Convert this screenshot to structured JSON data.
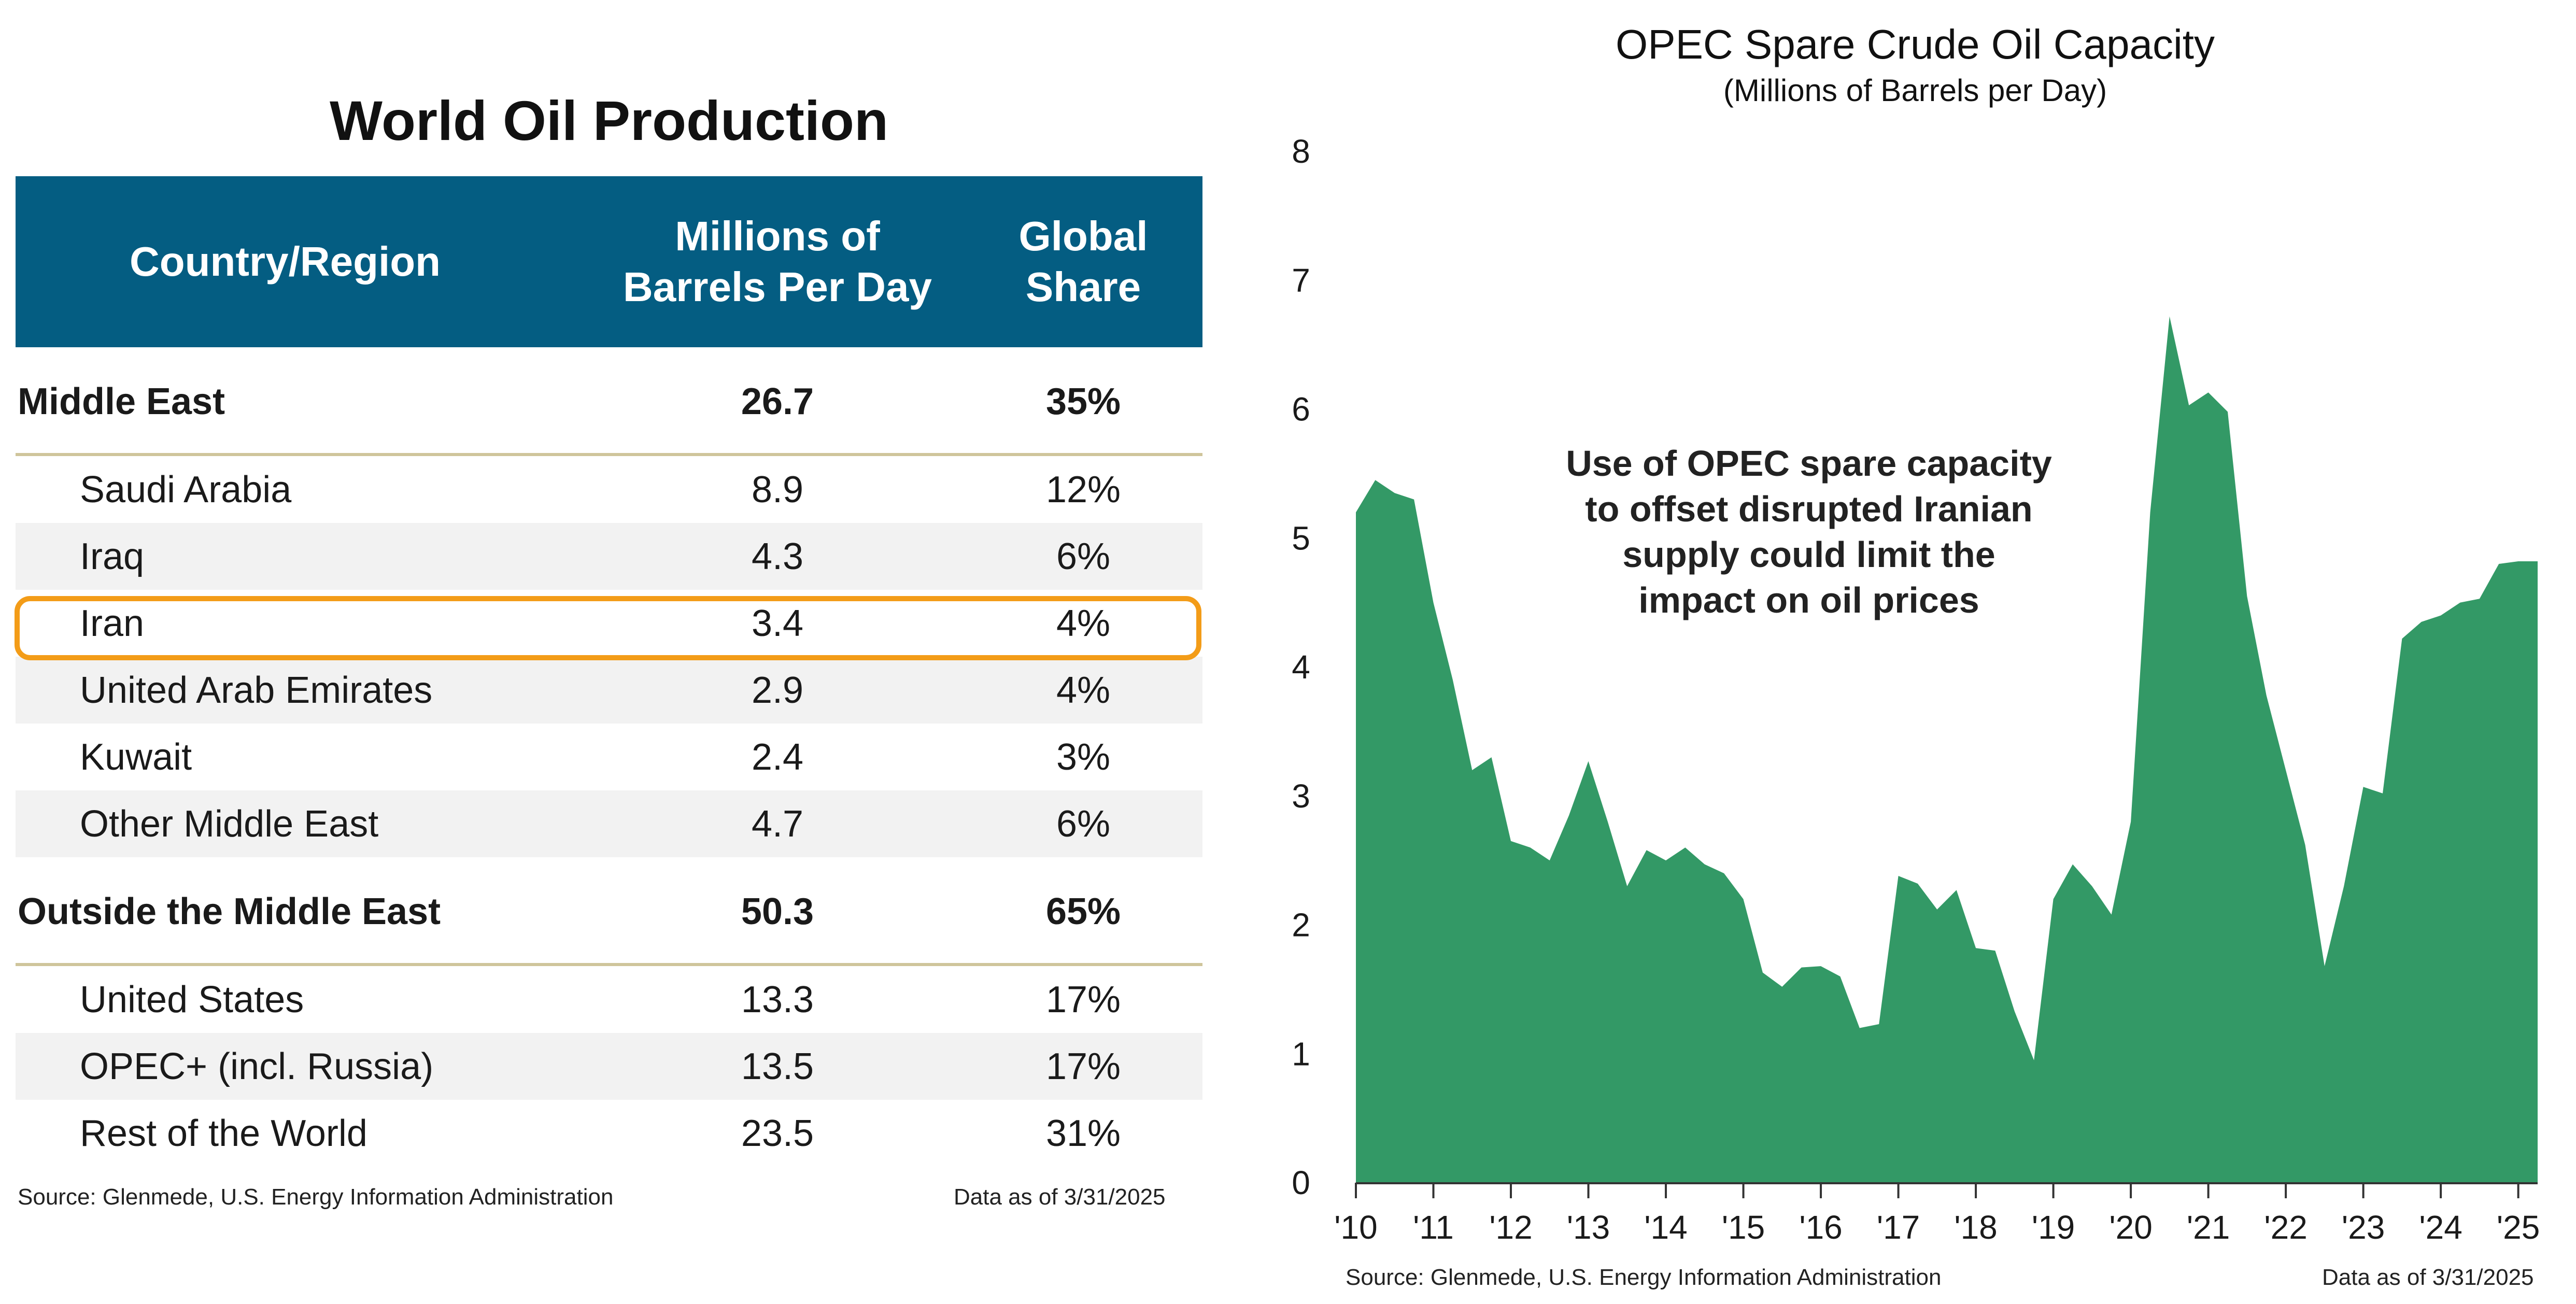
{
  "table": {
    "title": "World Oil Production",
    "headers": {
      "country": "Country/Region",
      "mbpd": "Millions of\nBarrels Per Day",
      "share": "Global\nShare"
    },
    "rows": [
      {
        "name": "Middle East",
        "value": "26.7",
        "share": "35%",
        "kind": "group",
        "shaded": false
      },
      {
        "name": "Saudi Arabia",
        "value": "8.9",
        "share": "12%",
        "kind": "sub",
        "shaded": false
      },
      {
        "name": "Iraq",
        "value": "4.3",
        "share": "6%",
        "kind": "sub",
        "shaded": true
      },
      {
        "name": "Iran",
        "value": "3.4",
        "share": "4%",
        "kind": "sub",
        "shaded": false,
        "highlighted": true
      },
      {
        "name": "United Arab Emirates",
        "value": "2.9",
        "share": "4%",
        "kind": "sub",
        "shaded": true
      },
      {
        "name": "Kuwait",
        "value": "2.4",
        "share": "3%",
        "kind": "sub",
        "shaded": false
      },
      {
        "name": "Other Middle East",
        "value": "4.7",
        "share": "6%",
        "kind": "sub",
        "shaded": true
      },
      {
        "name": "Outside the Middle East",
        "value": "50.3",
        "share": "65%",
        "kind": "group",
        "shaded": false
      },
      {
        "name": "United States",
        "value": "13.3",
        "share": "17%",
        "kind": "sub",
        "shaded": false
      },
      {
        "name": "OPEC+ (incl. Russia)",
        "value": "13.5",
        "share": "17%",
        "kind": "sub",
        "shaded": true
      },
      {
        "name": "Rest of the World",
        "value": "23.5",
        "share": "31%",
        "kind": "sub",
        "shaded": false
      }
    ],
    "source": "Source: Glenmede, U.S. Energy Information Administration",
    "as_of": "Data as of  3/31/2025"
  },
  "colors": {
    "header_bg": "#045d82",
    "rule": "#cfc59b",
    "highlight": "#f39c18",
    "area": "#339966",
    "shade": "#f2f2f2"
  },
  "chart_data": {
    "type": "area",
    "title": "OPEC Spare Crude Oil Capacity",
    "subtitle": "(Millions of Barrels per Day)",
    "xlabel": "",
    "ylabel": "",
    "ylim": [
      0,
      8
    ],
    "yticks": [
      0,
      1,
      2,
      3,
      4,
      5,
      6,
      7,
      8
    ],
    "xlim": [
      2010.0,
      2025.25
    ],
    "xtick_labels": [
      "'10",
      "'11",
      "'12",
      "'13",
      "'14",
      "'15",
      "'16",
      "'17",
      "'18",
      "'19",
      "'20",
      "'21",
      "'22",
      "'23",
      "'24",
      "'25"
    ],
    "grid": false,
    "legend": "none",
    "annotation": "Use of OPEC spare capacity\nto offset disrupted Iranian\nsupply could limit the\nimpact on oil prices",
    "source": "Source: Glenmede, U.S. Energy Information Administration",
    "as_of": "Data as of 3/31/2025",
    "series": [
      {
        "x": [
          2010.0,
          2010.25,
          2010.5,
          2010.75,
          2011.0,
          2011.25,
          2011.5,
          2011.75,
          2012.0,
          2012.25,
          2012.5,
          2012.75,
          2013.0,
          2013.25,
          2013.5,
          2013.75,
          2014.0,
          2014.25,
          2014.5,
          2014.75,
          2015.0,
          2015.25,
          2015.5,
          2015.75,
          2016.0,
          2016.25,
          2016.5,
          2016.75,
          2017.0,
          2017.25,
          2017.5,
          2017.75,
          2018.0,
          2018.25,
          2018.5,
          2018.75,
          2019.0,
          2019.25,
          2019.5,
          2019.75,
          2020.0,
          2020.25,
          2020.5,
          2020.75,
          2021.0,
          2021.25,
          2021.5,
          2021.75,
          2022.0,
          2022.25,
          2022.5,
          2022.75,
          2023.0,
          2023.25,
          2023.5,
          2023.75,
          2024.0,
          2024.25,
          2024.5,
          2024.75,
          2025.0,
          2025.25
        ],
        "values": [
          5.2,
          5.45,
          5.35,
          5.3,
          4.5,
          3.9,
          3.2,
          3.3,
          2.65,
          2.6,
          2.5,
          2.85,
          3.27,
          2.8,
          2.3,
          2.58,
          2.5,
          2.6,
          2.47,
          2.4,
          2.2,
          1.63,
          1.52,
          1.67,
          1.68,
          1.6,
          1.2,
          1.23,
          2.38,
          2.32,
          2.12,
          2.27,
          1.82,
          1.8,
          1.33,
          0.95,
          2.2,
          2.47,
          2.3,
          2.08,
          2.8,
          5.2,
          6.72,
          6.03,
          6.13,
          5.98,
          4.55,
          3.78,
          3.2,
          2.62,
          1.68,
          2.3,
          3.07,
          3.02,
          4.22,
          4.35,
          4.4,
          4.5,
          4.53,
          4.8,
          4.82,
          4.82
        ]
      }
    ]
  }
}
